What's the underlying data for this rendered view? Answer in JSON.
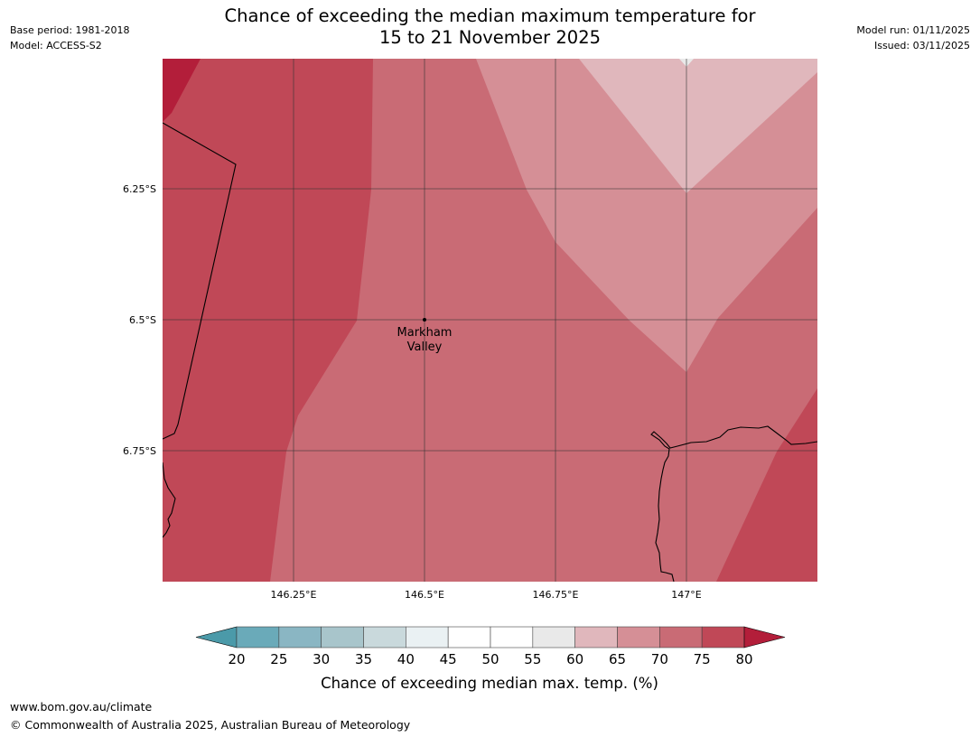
{
  "header": {
    "title_line1": "Chance of exceeding the median maximum temperature for",
    "title_line2": "15 to 21 November 2025",
    "base_period": "Base period: 1981-2018",
    "model": "Model: ACCESS-S2",
    "model_run": "Model run: 01/11/2025",
    "issued": "Issued: 03/11/2025"
  },
  "map": {
    "lon_labels": [
      "146.25°E",
      "146.5°E",
      "146.75°E",
      "147°E"
    ],
    "lat_labels": [
      "6.25°S",
      "6.5°S",
      "6.75°S"
    ],
    "place": {
      "name_line1": "Markham",
      "name_line2": "Valley"
    },
    "colors": {
      "band_80_plus": "#b31e3a",
      "band_75_80": "#c04857",
      "band_70_75": "#c96b75",
      "band_65_70": "#d58f96",
      "band_60_65": "#e0b7bc",
      "band_55_60": "#e9e9e9",
      "boundary": "#000000",
      "grid": "#333333"
    }
  },
  "colorbar": {
    "title": "Chance of exceeding median max. temp. (%)",
    "tick_labels": [
      "20",
      "25",
      "30",
      "35",
      "40",
      "45",
      "50",
      "55",
      "60",
      "65",
      "70",
      "75",
      "80"
    ],
    "under_color": "#4b9aa9",
    "over_color": "#b31e3a",
    "bin_colors": [
      "#6aaab9",
      "#8ab6c3",
      "#a8c5cb",
      "#c9d9dc",
      "#eaf1f3",
      "#ffffff",
      "#ffffff",
      "#e9e9e9",
      "#e0b7bc",
      "#d58f96",
      "#c96b75",
      "#c04857"
    ]
  },
  "footer": {
    "url": "www.bom.gov.au/climate",
    "copyright": "© Commonwealth of Australia 2025, Australian Bureau of Meteorology"
  }
}
